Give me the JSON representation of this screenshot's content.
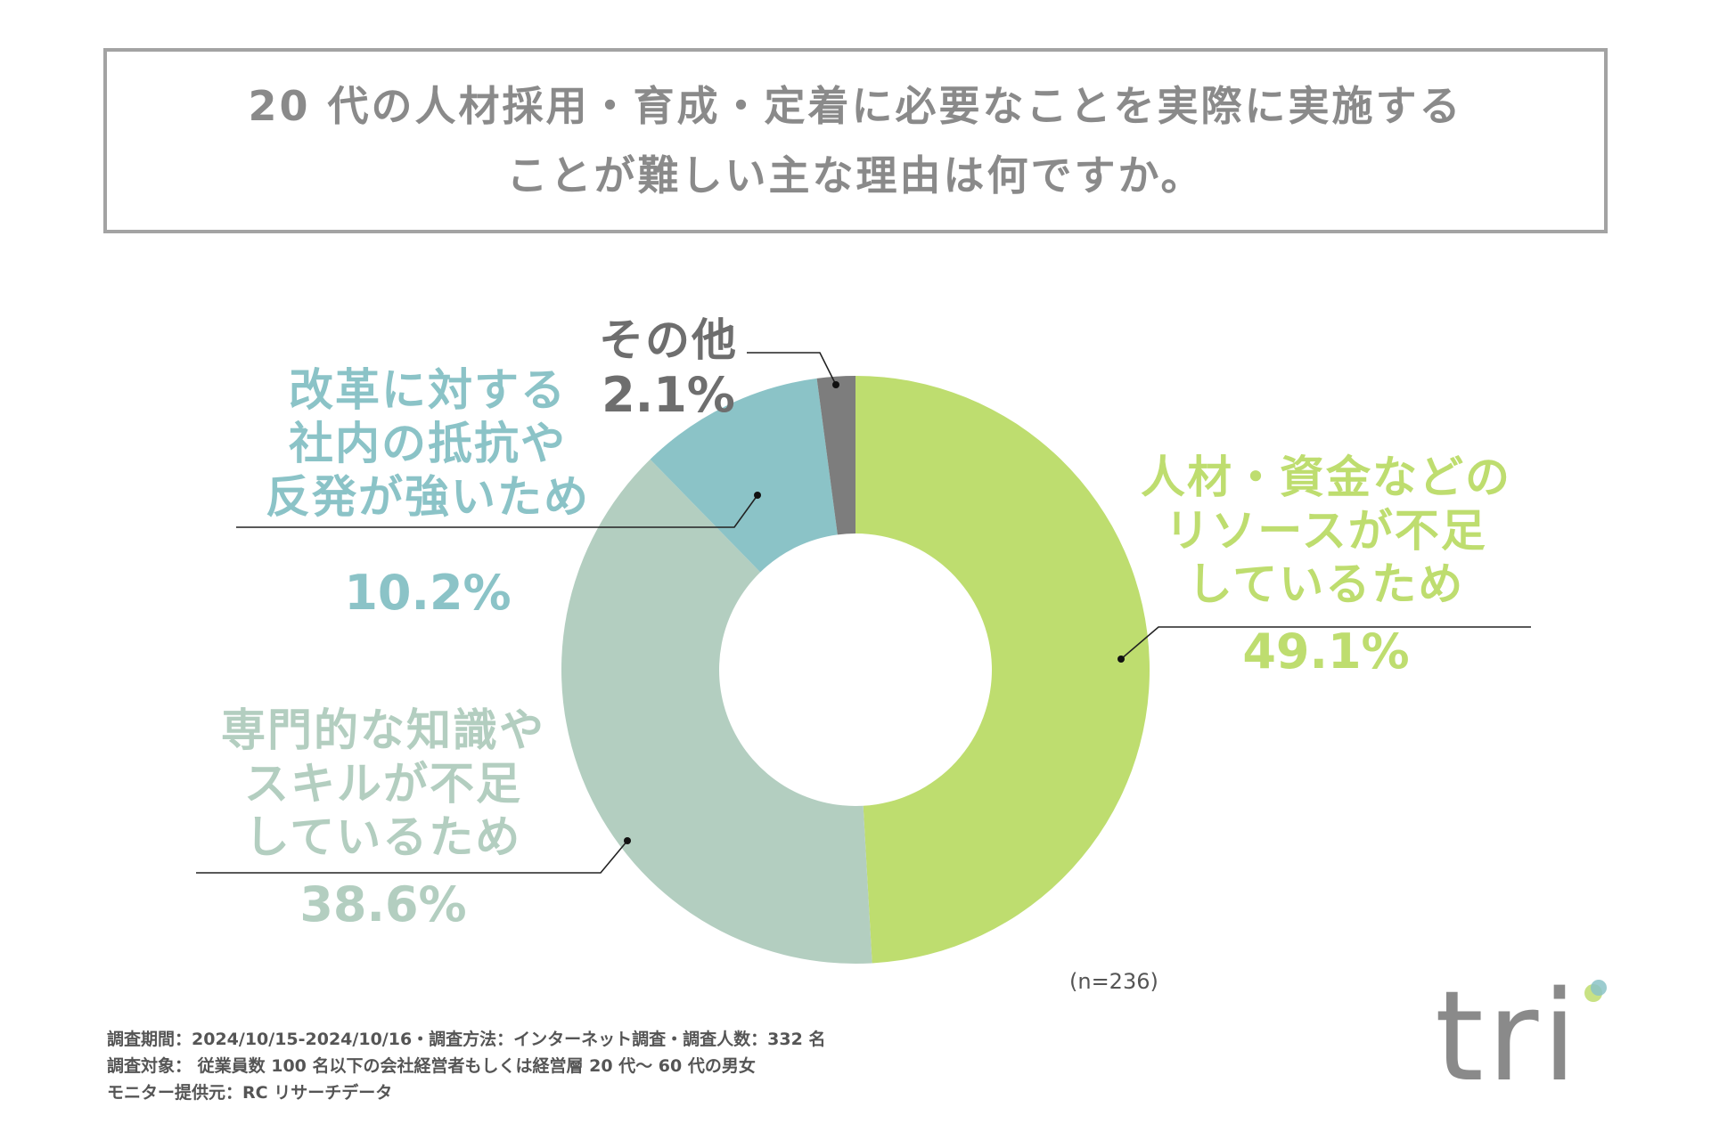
{
  "title": {
    "line1": "20 代の人材採用・育成・定着に必要なことを実際に実施する",
    "line2": "ことが難しい主な理由は何ですか。"
  },
  "chart_data": {
    "type": "pie",
    "title": "20 代の人材採用・育成・定着に必要なことを実際に実施することが難しい主な理由は何ですか。",
    "slices": [
      {
        "label_lines": [
          "人材・資金などの",
          "リソースが不足",
          "しているため"
        ],
        "value": 49.1,
        "value_label": "49.1%",
        "color": "#bedd6f"
      },
      {
        "label_lines": [
          "専門的な知識や",
          "スキルが不足",
          "しているため"
        ],
        "value": 38.6,
        "value_label": "38.6%",
        "color": "#b3cec0"
      },
      {
        "label_lines": [
          "改革に対する",
          "社内の抵抗や",
          "反発が強いため"
        ],
        "value": 10.2,
        "value_label": "10.2%",
        "color": "#8bc3c7"
      },
      {
        "label_lines": [
          "その他"
        ],
        "value": 2.1,
        "value_label": "2.1%",
        "color": "#7d7d7d"
      }
    ],
    "sample_note": "(n=236)"
  },
  "footer": {
    "line1": "調査期間：2024/10/15-2024/10/16・調査方法：インターネット調査・調査人数：332 名",
    "line2": "調査対象： 従業員数 100 名以下の会社経営者もしくは経営層 20 代～ 60 代の男女",
    "line3": "モニター提供元：RC リサーチデータ"
  },
  "logo": {
    "text": "tri",
    "dot_color_1": "#bedd6f",
    "dot_color_2": "#8bc3c7",
    "text_color": "#8a8a8a"
  }
}
